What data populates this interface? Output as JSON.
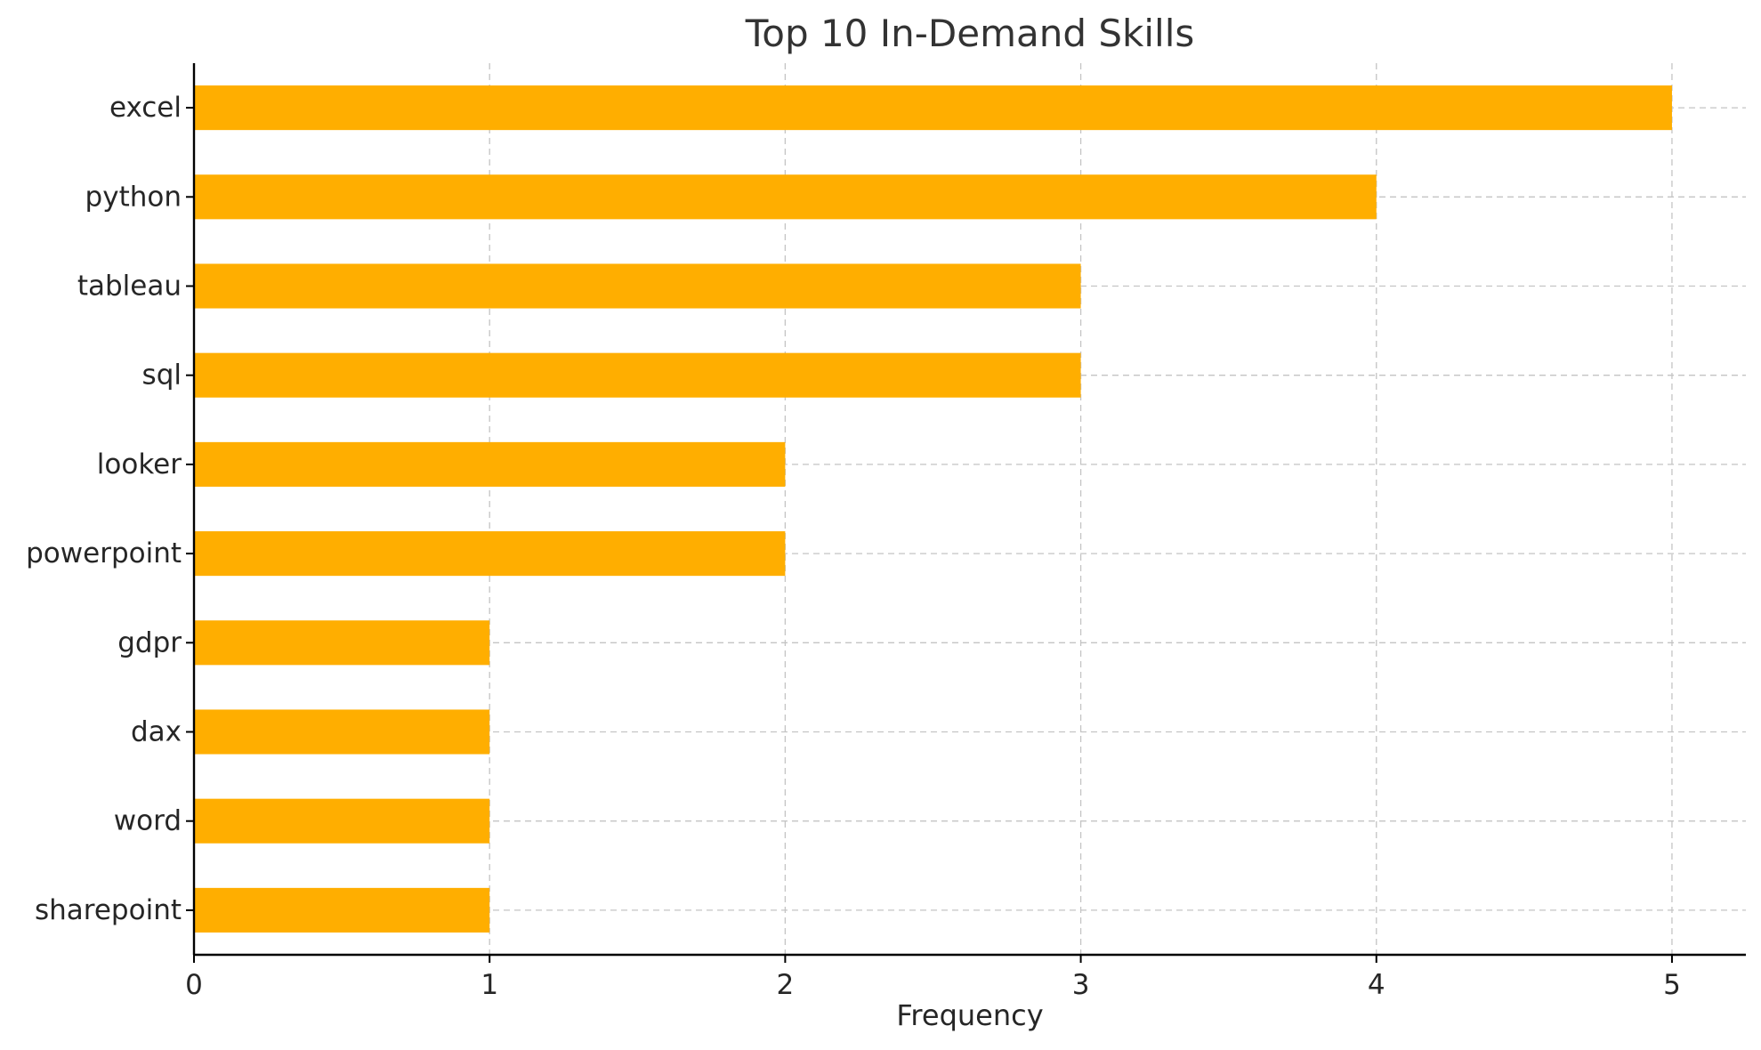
{
  "chart_data": {
    "type": "bar",
    "orientation": "horizontal",
    "title": "Top 10 In-Demand Skills",
    "xlabel": "Frequency",
    "ylabel": "",
    "categories": [
      "excel",
      "python",
      "tableau",
      "sql",
      "looker",
      "powerpoint",
      "gdpr",
      "dax",
      "word",
      "sharepoint"
    ],
    "values": [
      5,
      4,
      3,
      3,
      2,
      2,
      1,
      1,
      1,
      1
    ],
    "xlim": [
      0,
      5.25
    ],
    "xticks": [
      0,
      1,
      2,
      3,
      4,
      5
    ],
    "grid": true,
    "bar_color": "#FFAE00"
  }
}
